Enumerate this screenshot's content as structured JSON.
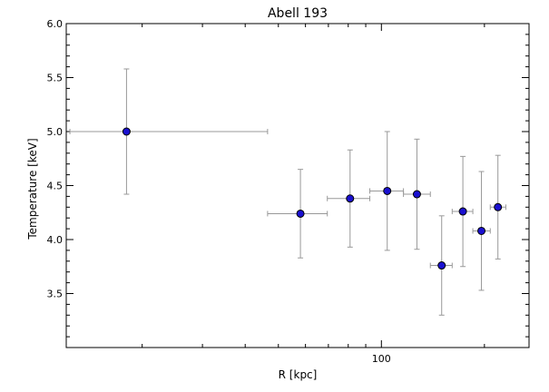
{
  "chart_data": {
    "type": "scatter",
    "title": "Abell 193",
    "xlabel": "R [kpc]",
    "ylabel": "Temperature [keV]",
    "x_scale": "log",
    "xlim": [
      12,
      270
    ],
    "ylim": [
      3.0,
      6.0
    ],
    "x_ticks": [
      {
        "value": 100,
        "label": "100"
      }
    ],
    "y_ticks": [
      {
        "value": 3.5,
        "label": "3.5"
      },
      {
        "value": 4.0,
        "label": "4.0"
      },
      {
        "value": 4.5,
        "label": "4.5"
      },
      {
        "value": 5.0,
        "label": "5.0"
      },
      {
        "value": 5.5,
        "label": "5.5"
      },
      {
        "value": 6.0,
        "label": "6.0"
      }
    ],
    "grid": false,
    "marker_color": "#1a10d0",
    "errorbar_color": "#999999",
    "points": [
      {
        "x": 18.0,
        "xmin": 12.3,
        "xmax": 46.5,
        "y": 5.0,
        "ylo": 4.42,
        "yhi": 5.58
      },
      {
        "x": 58.0,
        "xmin": 46.5,
        "xmax": 69.5,
        "y": 4.24,
        "ylo": 3.83,
        "yhi": 4.65
      },
      {
        "x": 81.0,
        "xmin": 69.5,
        "xmax": 92.5,
        "y": 4.38,
        "ylo": 3.93,
        "yhi": 4.83
      },
      {
        "x": 104.0,
        "xmin": 92.5,
        "xmax": 116.0,
        "y": 4.45,
        "ylo": 3.9,
        "yhi": 5.0
      },
      {
        "x": 127.0,
        "xmin": 116.0,
        "xmax": 139.0,
        "y": 4.42,
        "ylo": 3.91,
        "yhi": 4.93
      },
      {
        "x": 150.0,
        "xmin": 139.0,
        "xmax": 161.0,
        "y": 3.76,
        "ylo": 3.3,
        "yhi": 4.22
      },
      {
        "x": 173.0,
        "xmin": 161.0,
        "xmax": 185.0,
        "y": 4.26,
        "ylo": 3.75,
        "yhi": 4.77
      },
      {
        "x": 196.0,
        "xmin": 185.0,
        "xmax": 208.0,
        "y": 4.08,
        "ylo": 3.53,
        "yhi": 4.63
      },
      {
        "x": 219.0,
        "xmin": 208.0,
        "xmax": 231.0,
        "y": 4.3,
        "ylo": 3.82,
        "yhi": 4.78
      }
    ]
  }
}
